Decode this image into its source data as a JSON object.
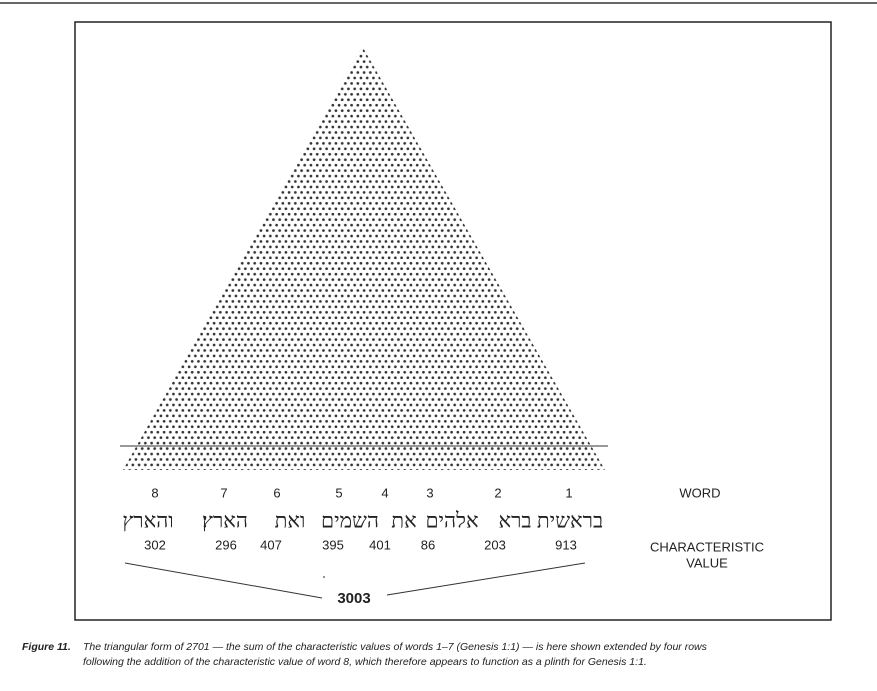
{
  "figure": {
    "words": [
      {
        "number": "1",
        "hebrew": "בראשית",
        "value": "913"
      },
      {
        "number": "2",
        "hebrew": "ברא",
        "value": "203"
      },
      {
        "number": "3",
        "hebrew": "אלהים",
        "value": "86"
      },
      {
        "number": "4",
        "hebrew": "את",
        "value": "401"
      },
      {
        "number": "5",
        "hebrew": "השמים",
        "value": "395"
      },
      {
        "number": "6",
        "hebrew": "ואת",
        "value": "407"
      },
      {
        "number": "7",
        "hebrew": "הארץ׃",
        "value": "296"
      },
      {
        "number": "8",
        "hebrew": "והארץ",
        "value": "302"
      }
    ],
    "word_label": "WORD",
    "value_label": [
      "CHARACTERISTIC",
      "VALUE"
    ],
    "total": "3003"
  },
  "caption": {
    "label": "Figure 11.",
    "lines": [
      "The triangular form of 2701 — the sum of the characteristic values of words 1–7 (Genesis 1:1) — is here shown extended by four rows",
      "following the addition of the characteristic value of word 8, which therefore appears to function as a plinth for Genesis 1:1."
    ]
  }
}
